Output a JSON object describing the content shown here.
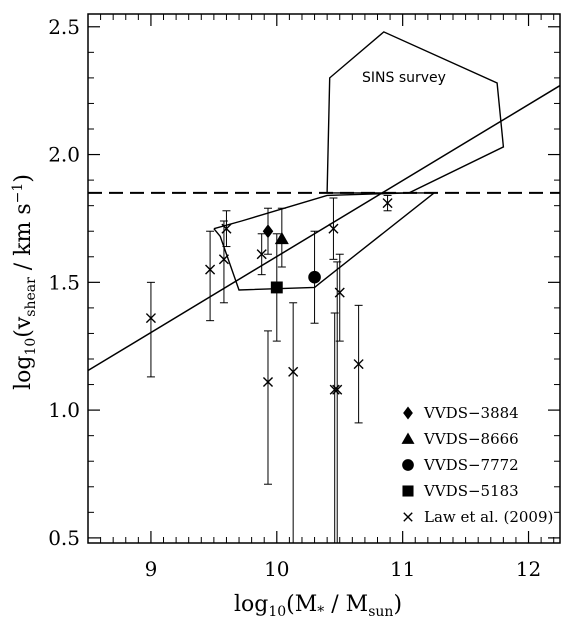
{
  "chart_data": {
    "type": "scatter",
    "xlabel": "log10(M* / Msun)",
    "ylabel": "log10(vshear / km s-1)",
    "xlim": [
      8.5,
      12.25
    ],
    "ylim": [
      0.48,
      2.55
    ],
    "xticks_major": [
      9,
      10,
      11,
      12
    ],
    "xticks_minor": [
      8.5,
      8.6,
      8.7,
      8.8,
      8.9,
      9.1,
      9.2,
      9.3,
      9.4,
      9.5,
      9.6,
      9.7,
      9.8,
      9.9,
      10.1,
      10.2,
      10.3,
      10.4,
      10.5,
      10.6,
      10.7,
      10.8,
      10.9,
      11.1,
      11.2,
      11.3,
      11.4,
      11.5,
      11.6,
      11.7,
      11.8,
      11.9,
      12.1,
      12.2
    ],
    "yticks_major": [
      0.5,
      1.0,
      1.5,
      2.0,
      2.5
    ],
    "yticks_minor": [
      0.6,
      0.7,
      0.8,
      0.9,
      1.1,
      1.2,
      1.3,
      1.4,
      1.6,
      1.7,
      1.8,
      1.9,
      2.1,
      2.2,
      2.3,
      2.4
    ],
    "xtick_labels": [
      "9",
      "10",
      "11",
      "12"
    ],
    "ytick_labels": [
      "0.5",
      "1.0",
      "1.5",
      "2.0",
      "2.5"
    ],
    "dashed_line_y": 1.85,
    "fit_line": {
      "x": [
        8.5,
        12.25
      ],
      "y": [
        1.155,
        2.27
      ]
    },
    "sins_region": {
      "label": "SINS survey",
      "polygon": [
        [
          10.4,
          1.85
        ],
        [
          10.42,
          2.3
        ],
        [
          10.85,
          2.48
        ],
        [
          11.75,
          2.28
        ],
        [
          11.8,
          2.03
        ],
        [
          11.05,
          1.85
        ]
      ]
    },
    "law_region": {
      "polygon": [
        [
          9.5,
          1.71
        ],
        [
          9.72,
          1.74
        ],
        [
          10.4,
          1.84
        ],
        [
          11.05,
          1.85
        ],
        [
          11.25,
          1.85
        ],
        [
          10.35,
          1.5
        ],
        [
          10.3,
          1.48
        ],
        [
          9.7,
          1.47
        ],
        [
          9.55,
          1.68
        ],
        [
          9.5,
          1.71
        ]
      ]
    },
    "series": [
      {
        "name": "VVDS−3884",
        "marker": "diamond",
        "points": [
          {
            "x": 9.93,
            "y": 1.7,
            "ylo": 1.61,
            "yhi": 1.79
          }
        ]
      },
      {
        "name": "VVDS−8666",
        "marker": "triangle",
        "points": [
          {
            "x": 10.04,
            "y": 1.67,
            "ylo": 1.56,
            "yhi": 1.79
          }
        ]
      },
      {
        "name": "VVDS−7772",
        "marker": "circle",
        "points": [
          {
            "x": 10.3,
            "y": 1.52,
            "ylo": 1.34,
            "yhi": 1.7
          }
        ]
      },
      {
        "name": "VVDS−5183",
        "marker": "square",
        "points": [
          {
            "x": 10.0,
            "y": 1.48,
            "ylo": 1.27,
            "yhi": 1.69
          }
        ]
      },
      {
        "name": "Law et al. (2009)",
        "marker": "cross",
        "points": [
          {
            "x": 9.0,
            "y": 1.36,
            "ylo": 1.13,
            "yhi": 1.5
          },
          {
            "x": 9.47,
            "y": 1.55,
            "ylo": 1.35,
            "yhi": 1.7
          },
          {
            "x": 9.58,
            "y": 1.59,
            "ylo": 1.42,
            "yhi": 1.74
          },
          {
            "x": 9.6,
            "y": 1.71,
            "ylo": 1.64,
            "yhi": 1.78
          },
          {
            "x": 9.88,
            "y": 1.61,
            "ylo": 1.53,
            "yhi": 1.69
          },
          {
            "x": 9.93,
            "y": 1.11,
            "ylo": 0.71,
            "yhi": 1.31
          },
          {
            "x": 10.13,
            "y": 1.15,
            "ylo": 0.48,
            "yhi": 1.42
          },
          {
            "x": 10.45,
            "y": 1.71,
            "ylo": 1.59,
            "yhi": 1.83
          },
          {
            "x": 10.46,
            "y": 1.08,
            "ylo": 0.48,
            "yhi": 1.38
          },
          {
            "x": 10.48,
            "y": 1.08,
            "ylo": 0.48,
            "yhi": 1.58
          },
          {
            "x": 10.5,
            "y": 1.46,
            "ylo": 1.27,
            "yhi": 1.61
          },
          {
            "x": 10.65,
            "y": 1.18,
            "ylo": 0.95,
            "yhi": 1.41
          },
          {
            "x": 10.88,
            "y": 1.81,
            "ylo": 1.78,
            "yhi": 1.84
          }
        ]
      }
    ],
    "legend_position": "bottom-right"
  },
  "axes": {
    "x_title": {
      "main": "log",
      "sub": "10",
      "rest": "(M",
      "star": "*",
      "slash": " / M",
      "sub2": "sun",
      "close": ")"
    },
    "y_title": {
      "main": "log",
      "sub": "10",
      "rest": "(v",
      "sub2": "shear",
      "slash": " / km s",
      "sup": "−1",
      "close": ")"
    }
  },
  "colors": {
    "ink": "#000000",
    "background": "#ffffff"
  }
}
